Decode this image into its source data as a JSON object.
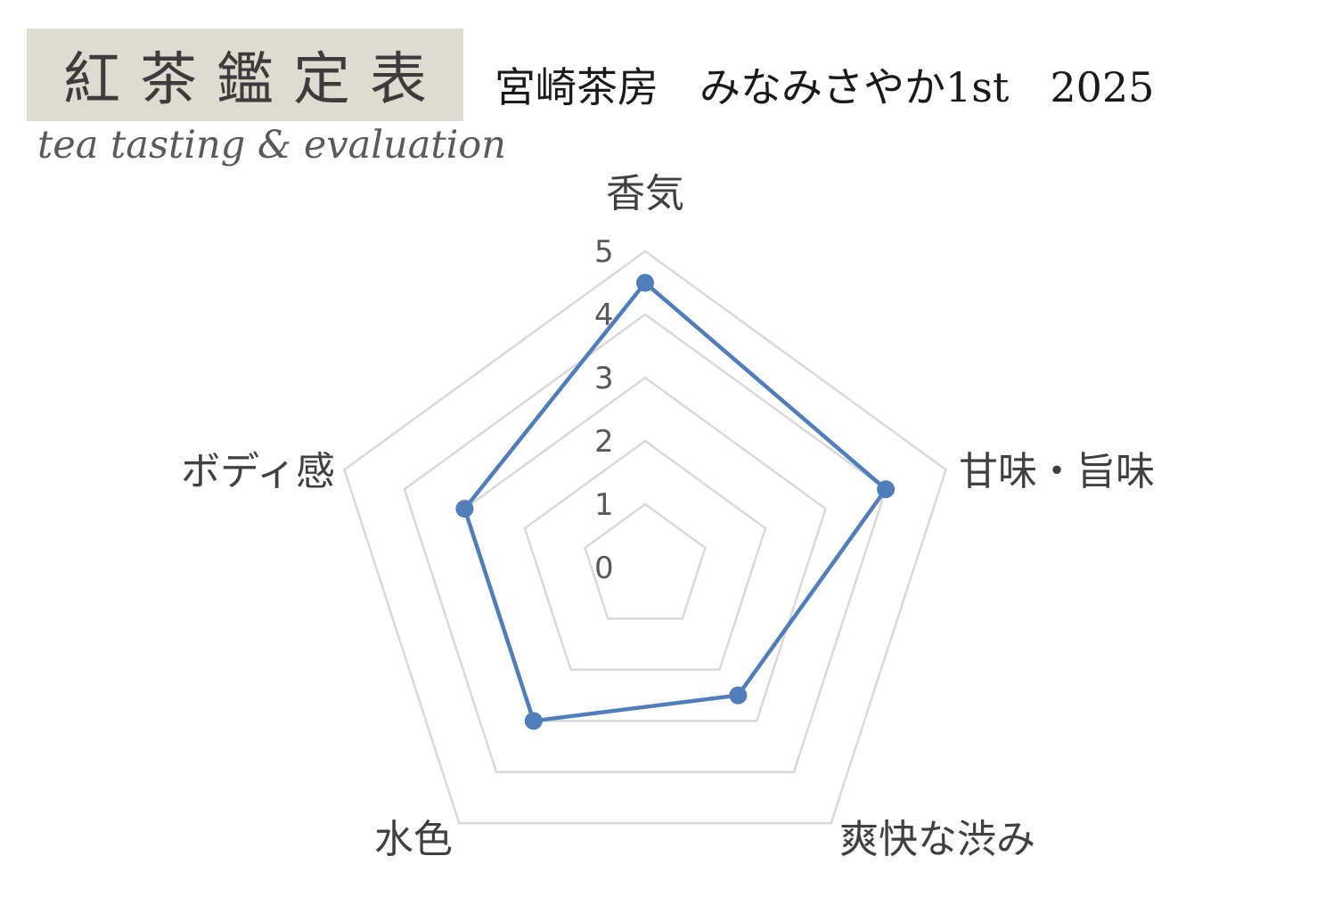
{
  "logo": {
    "title": "紅茶鑑定表",
    "subtitle": "tea tasting & evaluation"
  },
  "header": {
    "text": "宮崎茶房　みなみさやか1st　2025"
  },
  "chart_data": {
    "type": "radar",
    "title": "",
    "axes": [
      "香気",
      "甘味・旨味",
      "爽快な渋み",
      "水色",
      "ボディ感"
    ],
    "series": [
      {
        "values": [
          4.5,
          4.0,
          2.5,
          3.0,
          3.0
        ]
      }
    ],
    "rlim": [
      0,
      5
    ],
    "ticks": [
      0,
      1,
      2,
      3,
      4,
      5
    ],
    "grid": true,
    "colors": {
      "series": "#4f7ebb",
      "grid": "#d9d9d9"
    }
  }
}
